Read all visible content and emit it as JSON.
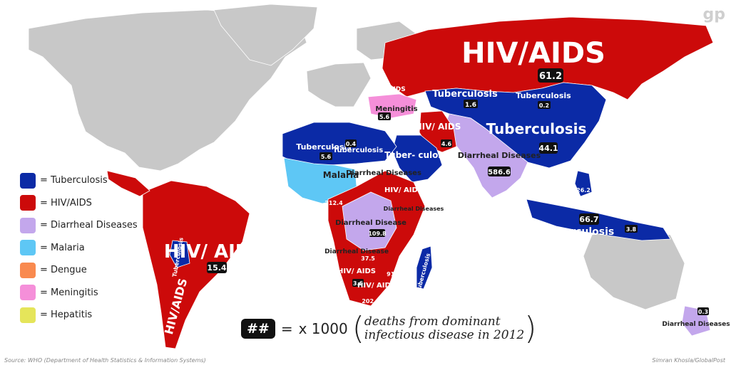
{
  "colors": {
    "tuberculosis": "#0b2aa6",
    "hiv_aids": "#cc0a0a",
    "diarrheal": "#c3a7ec",
    "malaria": "#5ec7f5",
    "dengue": "#f98a4f",
    "meningitis": "#f58fd9",
    "hepatitis": "#e5e55a",
    "nodata": "#c8c8c8"
  },
  "legend": [
    {
      "key": "tuberculosis",
      "label": "= Tuberculosis"
    },
    {
      "key": "hiv_aids",
      "label": "= HIV/AIDS"
    },
    {
      "key": "diarrheal",
      "label": "= Diarrheal Diseases"
    },
    {
      "key": "malaria",
      "label": "= Malaria"
    },
    {
      "key": "dengue",
      "label": "= Dengue"
    },
    {
      "key": "meningitis",
      "label": "= Meningitis"
    },
    {
      "key": "hepatitis",
      "label": "= Hepatitis"
    }
  ],
  "key": {
    "box": "##",
    "equals": "=",
    "value": "x 1000",
    "note_line1": "deaths from dominant",
    "note_line2": "infectious disease in 2012"
  },
  "source": "Source: WHO (Department of Health Statistics & Information Systems)",
  "credit": "Simran Khosla/GlobalPost",
  "logo": "gp",
  "labels": {
    "russia": {
      "disease": "HIV/AIDS",
      "value": "61.2"
    },
    "kazakhstan": {
      "disease": "Tuberculosis",
      "value": "1.6"
    },
    "mongolia": {
      "disease": "Tuberculosis",
      "value": "0.2"
    },
    "china": {
      "disease": "Tuberculosis",
      "value": "44.1"
    },
    "iran": {
      "disease": "HIV/ AIDS",
      "value": "4.6"
    },
    "saudi": {
      "disease": "Tuber- culosis"
    },
    "india": {
      "disease": "Diarrheal Diseases",
      "value": "586.6"
    },
    "indonesia": {
      "disease": "Tuberculosis",
      "value": "66.7"
    },
    "algeria": {
      "disease": "Tuberculosis",
      "value": "5.6"
    },
    "libya": {
      "disease": "Tuberculosis",
      "value": "0.4"
    },
    "mali": {
      "disease": "Malaria"
    },
    "brazil": {
      "disease": "HIV/ AIDS",
      "value": "15.4"
    },
    "argentina": {
      "disease": "HIV/AIDS"
    },
    "bolivia": {
      "disease": "Tuberculosis"
    },
    "turkey": {
      "disease": "Meningitis",
      "value": "5.6"
    },
    "drc": {
      "disease": "Diarrheal Disease",
      "value": "109.8"
    },
    "angola": {
      "disease": "Diarrheal Disease"
    },
    "namibia": {
      "disease": "HIV/ AIDS",
      "value": "3.6"
    },
    "southafrica": {
      "disease": "HIV/ AIDS"
    },
    "madagascar": {
      "disease": "Tuberculosis"
    },
    "nz": {
      "disease": "Diarrheal Diseases",
      "value": "0.3"
    },
    "ukraine": {
      "disease": "HIV/AIDS"
    },
    "nigeria": {
      "value": "212.4"
    },
    "sudan": {
      "disease": "HIV/ AIDS"
    },
    "ethiopia": {
      "disease": "Diarrheal Diseases"
    },
    "chad": {
      "disease": "Diarrheal Diseases"
    },
    "philippines": {
      "value": "26.2"
    },
    "png": {
      "value": "3.8"
    },
    "sa_value": {
      "value": "202.1"
    },
    "moz": {
      "value": "91.8"
    },
    "zambia": {
      "value": "37.5"
    }
  }
}
